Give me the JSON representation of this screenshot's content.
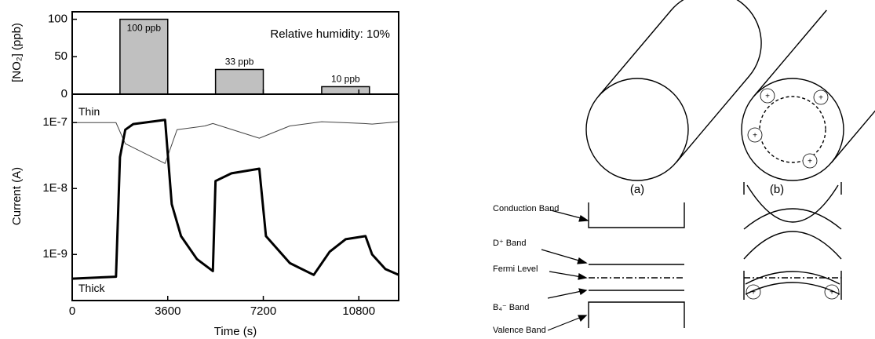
{
  "chart_data": [
    {
      "type": "bar",
      "ylabel": "[NO₂] (ppb)",
      "annotation": "Relative humidity: 10%",
      "x": [
        [
          1800,
          3600
        ],
        [
          5400,
          7200
        ],
        [
          9400,
          11200
        ]
      ],
      "values": [
        100,
        33,
        10
      ],
      "value_labels": [
        "100 ppb",
        "33 ppb",
        "10 ppb"
      ],
      "color": "#c0c0c0",
      "xlim": [
        0,
        12300
      ],
      "ylim": [
        0,
        110
      ],
      "yticks": [
        0,
        50,
        100
      ]
    },
    {
      "type": "line",
      "xlabel": "Time (s)",
      "ylabel": "Current (A)",
      "log_scale": true,
      "xlim": [
        0,
        12300
      ],
      "xticks": [
        0,
        3600,
        7200,
        10800
      ],
      "ylim": [
        2e-10,
        2.7e-07
      ],
      "yticks": [
        {
          "value": 1e-09,
          "label": "1E-9"
        },
        {
          "value": 1e-08,
          "label": "1E-8"
        },
        {
          "value": 1e-07,
          "label": "1E-7"
        }
      ],
      "series": [
        {
          "name": "Thin",
          "color": "#444444",
          "linewidth": 1,
          "x": [
            0,
            1650,
            2000,
            3500,
            3950,
            5000,
            5300,
            7050,
            8200,
            9400,
            11000,
            11300,
            12300
          ],
          "values": [
            1e-07,
            1e-07,
            4.8e-08,
            2.4e-08,
            7.8e-08,
            8.9e-08,
            9.7e-08,
            5.8e-08,
            8.9e-08,
            1.03e-07,
            9.7e-08,
            9.5e-08,
            1.03e-07
          ]
        },
        {
          "name": "Thick",
          "color": "#000000",
          "linewidth": 3,
          "x": [
            0,
            1650,
            1800,
            2000,
            2300,
            3500,
            3750,
            4100,
            4700,
            5300,
            5400,
            6000,
            7050,
            7300,
            8200,
            9100,
            9700,
            10300,
            11050,
            11300,
            11800,
            12300
          ],
          "values": [
            4.3e-10,
            4.6e-10,
            3e-08,
            7.8e-08,
            9.5e-08,
            1.1e-07,
            5.8e-09,
            1.9e-09,
            8.5e-10,
            5.6e-10,
            1.3e-08,
            1.7e-08,
            2e-08,
            1.9e-09,
            7.4e-10,
            4.9e-10,
            1.1e-09,
            1.7e-09,
            1.9e-09,
            1e-09,
            6e-10,
            4.9e-10
          ]
        }
      ]
    }
  ],
  "diagram": {
    "panel_a": "(a)",
    "panel_b": "(b)",
    "bands": [
      "Conduction Band",
      "D⁺ Band",
      "Fermi Level",
      "B₄⁻ Band",
      "Valence Band"
    ]
  }
}
